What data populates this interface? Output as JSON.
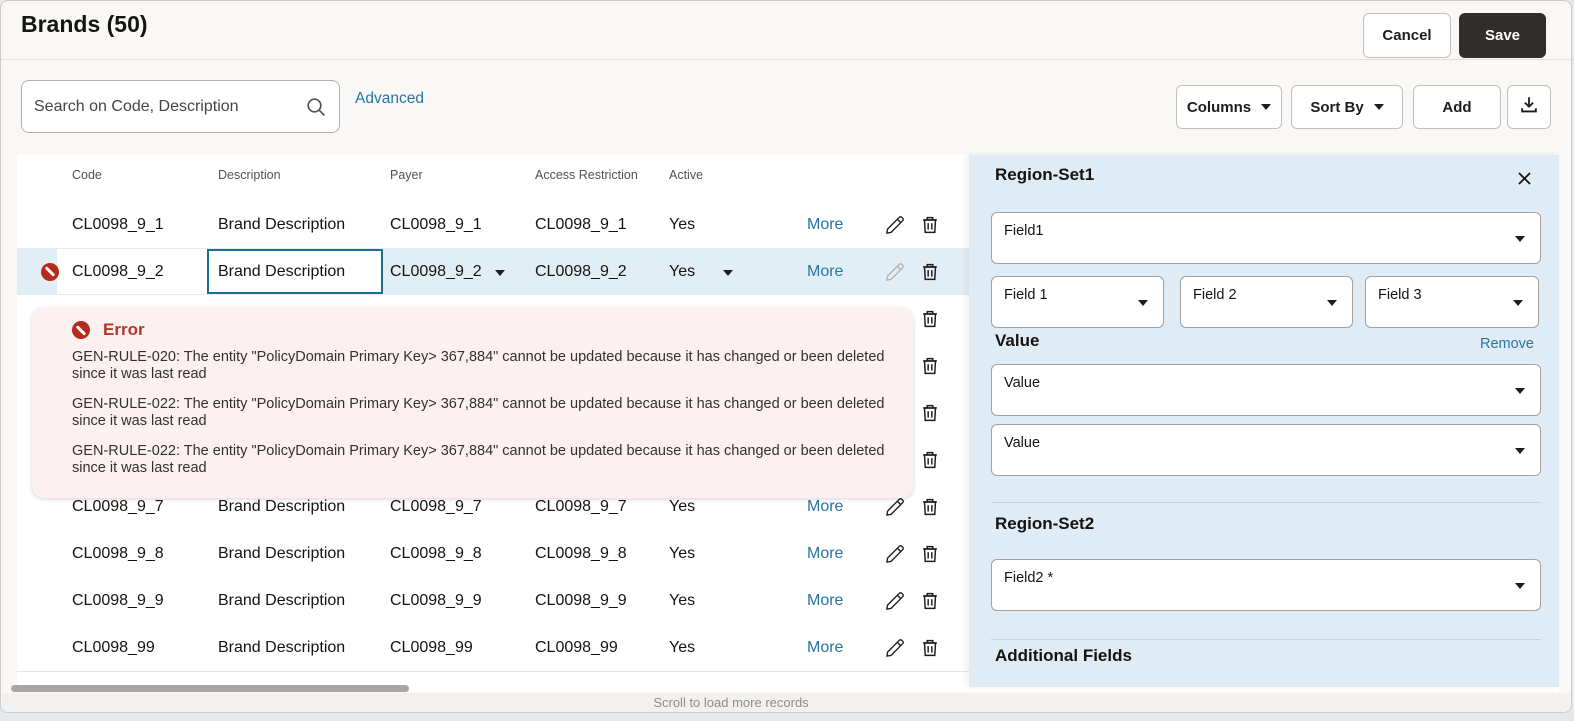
{
  "page": {
    "title": "Brands (50)"
  },
  "actions": {
    "cancel": "Cancel",
    "save": "Save"
  },
  "controls": {
    "search_placeholder": "Search on Code, Description",
    "advanced": "Advanced",
    "columns": "Columns",
    "sort_by": "Sort By",
    "add": "Add"
  },
  "colors": {
    "link_blue": "#2576a4",
    "error_red": "#b3362b",
    "error_popup_bg": "#fcf1f0",
    "selected_row_bg": "#e2eef6",
    "panel_bg": "#dfecf5",
    "save_button_bg": "#312d2a",
    "focus_cell_border": "#1d6f8a"
  },
  "table": {
    "headers": [
      "Code",
      "Description",
      "Payer",
      "Access Restriction",
      "Active"
    ],
    "more_label": "More",
    "rows": [
      {
        "code": "CL0098_9_1",
        "description": "Brand Description",
        "payer": "CL0098_9_1",
        "access": "CL0098_9_1",
        "active": "Yes",
        "state": "normal"
      },
      {
        "code": "CL0098_9_2",
        "description": "Brand Description",
        "payer": "CL0098_9_2",
        "access": "CL0098_9_2",
        "active": "Yes",
        "state": "editing"
      },
      {
        "code": "",
        "description": "",
        "payer": "",
        "access": "",
        "active": "",
        "state": "covered"
      },
      {
        "code": "",
        "description": "",
        "payer": "",
        "access": "",
        "active": "",
        "state": "covered"
      },
      {
        "code": "",
        "description": "",
        "payer": "",
        "access": "",
        "active": "",
        "state": "covered"
      },
      {
        "code": "",
        "description": "",
        "payer": "",
        "access": "",
        "active": "",
        "state": "covered"
      },
      {
        "code": "CL0098_9_7",
        "description": "Brand Description",
        "payer": "CL0098_9_7",
        "access": "CL0098_9_7",
        "active": "Yes",
        "state": "normal"
      },
      {
        "code": "CL0098_9_8",
        "description": "Brand Description",
        "payer": "CL0098_9_8",
        "access": "CL0098_9_8",
        "active": "Yes",
        "state": "normal"
      },
      {
        "code": "CL0098_9_9",
        "description": "Brand Description",
        "payer": "CL0098_9_9",
        "access": "CL0098_9_9",
        "active": "Yes",
        "state": "normal"
      },
      {
        "code": "CL0098_99",
        "description": "Brand Description",
        "payer": "CL0098_99",
        "access": "CL0098_99",
        "active": "Yes",
        "state": "normal"
      }
    ],
    "scroll_hint": "Scroll to load more records"
  },
  "error_popup": {
    "title": "Error",
    "messages": [
      "GEN-RULE-020: The entity \"PolicyDomain Primary Key> 367,884\" cannot be  updated because it has changed or been deleted since it was last read",
      "GEN-RULE-022: The entity \"PolicyDomain Primary Key> 367,884\" cannot be  updated because it has changed or been deleted since it was last read",
      "GEN-RULE-022: The entity \"PolicyDomain Primary Key> 367,884\" cannot be  updated because it has changed or been deleted since it was last read"
    ]
  },
  "panel": {
    "section1_title": "Region-Set1",
    "field1_label": "Field1",
    "sub_fields": [
      "Field 1",
      "Field 2",
      "Field 3"
    ],
    "value_title": "Value",
    "remove_label": "Remove",
    "value_fields": [
      "Value",
      "Value"
    ],
    "section2_title": "Region-Set2",
    "field2_label": "Field2 *",
    "additional_title": "Additional Fields"
  }
}
